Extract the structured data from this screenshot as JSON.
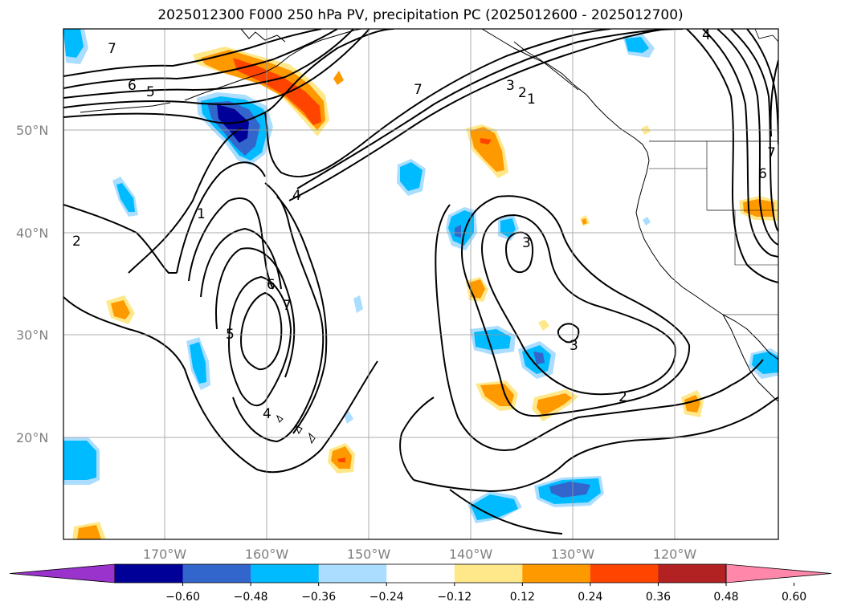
{
  "title": "2025012300 F000 250 hPa PV, precipitation PC (2025012600 - 2025012700)",
  "map": {
    "lat_labels": [
      "50°N",
      "40°N",
      "30°N",
      "20°N"
    ],
    "lon_labels": [
      "170°W",
      "160°W",
      "150°W",
      "140°W",
      "130°W",
      "120°W"
    ],
    "gridlines": true,
    "contour_field": "250 hPa PV",
    "contour_labels": [
      "7",
      "6",
      "5",
      "7",
      "3",
      "2",
      "1",
      "4",
      "1",
      "2",
      "4",
      "5",
      "6",
      "7",
      "3",
      "3",
      "2",
      "4",
      "7",
      "6"
    ],
    "shading_field": "precipitation PC"
  },
  "colorbar": {
    "ticks": [
      "−0.60",
      "−0.48",
      "−0.36",
      "−0.24",
      "−0.12",
      "0.12",
      "0.24",
      "0.36",
      "0.48",
      "0.60"
    ],
    "colors": [
      "#9933cc",
      "#000099",
      "#3366cc",
      "#00bbff",
      "#aaddff",
      "#ffffff",
      "#ffe88a",
      "#ff9900",
      "#ff4400",
      "#b22222",
      "#ff88aa"
    ],
    "extend": "both"
  }
}
